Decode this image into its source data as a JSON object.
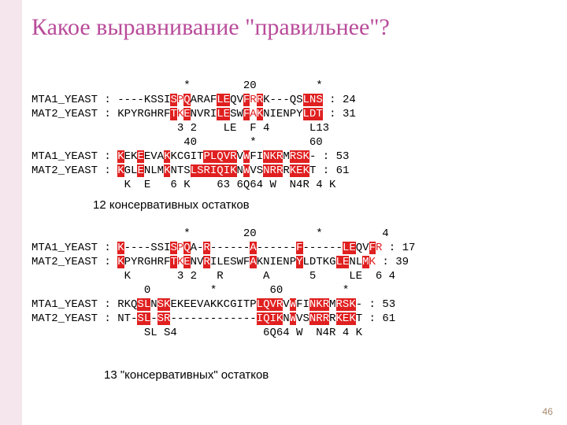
{
  "title": "Какое выравнивание \"правильнее\"?",
  "caption1": "12 консервативных остатков",
  "caption2": "13 \"консервативных\" остатков",
  "pageNumber": "46",
  "seqLabels": {
    "a": "MTA1_YEAST",
    "b": "MAT2_YEAST"
  },
  "block1_ruler1": "                       *        20         *       ",
  "block1_a_pre": " : ",
  "block1_a_seg": [
    [
      "----KSSI",
      0
    ],
    [
      "S",
      1
    ],
    [
      "P",
      2
    ],
    [
      "Q",
      1
    ],
    [
      "ARAF",
      0
    ],
    [
      "LE",
      1
    ],
    [
      "QV",
      0
    ],
    [
      "F",
      1
    ],
    [
      "R",
      2
    ],
    [
      "R",
      1
    ],
    [
      "K---QS",
      0
    ],
    [
      "LNS",
      1
    ],
    [
      " : 24",
      0
    ]
  ],
  "block1_b_seg": [
    [
      "KPYRGHRF",
      0
    ],
    [
      "T",
      1
    ],
    [
      "K",
      2
    ],
    [
      "E",
      1
    ],
    [
      "NVRI",
      0
    ],
    [
      "LE",
      1
    ],
    [
      "SW",
      0
    ],
    [
      "F",
      1
    ],
    [
      "A",
      2
    ],
    [
      "K",
      1
    ],
    [
      "NIENPY",
      0
    ],
    [
      "LDT",
      1
    ],
    [
      " : 31",
      0
    ]
  ],
  "block1_cons1": "                      3 2    LE  F 4      L13",
  "block1_ruler2": "                       40        *        60  ",
  "block1_a2_seg": [
    [
      "K",
      1
    ],
    [
      "EK",
      0
    ],
    [
      "E",
      1
    ],
    [
      "EVA",
      0
    ],
    [
      "K",
      1
    ],
    [
      "KCGIT",
      0
    ],
    [
      "P",
      1
    ],
    [
      "LQVR",
      1
    ],
    [
      "V",
      0
    ],
    [
      "W",
      1
    ],
    [
      "FI",
      0
    ],
    [
      "NKR",
      1
    ],
    [
      "M",
      0
    ],
    [
      "RSK",
      1
    ],
    [
      "-",
      0
    ],
    [
      " : 53",
      0
    ]
  ],
  "block1_b2_seg": [
    [
      "K",
      1
    ],
    [
      "GL",
      0
    ],
    [
      "E",
      1
    ],
    [
      "NLM",
      0
    ],
    [
      "K",
      1
    ],
    [
      "NTS",
      0
    ],
    [
      "LS",
      1
    ],
    [
      "R",
      1
    ],
    [
      "IQIK",
      1
    ],
    [
      "N",
      0
    ],
    [
      "W",
      1
    ],
    [
      "VS",
      0
    ],
    [
      "NRR",
      1
    ],
    [
      "R",
      0
    ],
    [
      "KEK",
      1
    ],
    [
      "T",
      0
    ],
    [
      " : 61",
      0
    ]
  ],
  "block1_cons2": "              K  E   6 K    63 6Q64 W  N4R 4 K",
  "block2_ruler1": "                       *        20         *         4",
  "block2_a_seg": [
    [
      "K",
      1
    ],
    [
      "----SSI",
      0
    ],
    [
      "S",
      1
    ],
    [
      "P",
      2
    ],
    [
      "Q",
      1
    ],
    [
      "A-",
      0
    ],
    [
      "R",
      1
    ],
    [
      "------",
      0
    ],
    [
      "A",
      1
    ],
    [
      "------",
      0
    ],
    [
      "F",
      1
    ],
    [
      "------",
      0
    ],
    [
      "LE",
      1
    ],
    [
      "QV",
      0
    ],
    [
      "F",
      1
    ],
    [
      "R",
      2
    ],
    [
      " : 17",
      0
    ]
  ],
  "block2_b_seg": [
    [
      "K",
      1
    ],
    [
      "PYRGHRF",
      0
    ],
    [
      "T",
      1
    ],
    [
      "K",
      2
    ],
    [
      "E",
      1
    ],
    [
      "NV",
      0
    ],
    [
      "R",
      1
    ],
    [
      "ILESWF",
      0
    ],
    [
      "A",
      1
    ],
    [
      "KNIENP",
      0
    ],
    [
      "Y",
      1
    ],
    [
      "LDTKG",
      0
    ],
    [
      "LE",
      1
    ],
    [
      "NL",
      0
    ],
    [
      "M",
      1
    ],
    [
      "K",
      2
    ],
    [
      " : 39",
      0
    ]
  ],
  "block2_cons1": "              K       3 2   R      A      5     LE  6 4",
  "block2_ruler2": "                 0         *        60         *      ",
  "block2_a2_seg": [
    [
      "RKQ",
      0
    ],
    [
      "SL",
      1
    ],
    [
      "N",
      0
    ],
    [
      "SK",
      1
    ],
    [
      "EKEEVAKKCGITP",
      0
    ],
    [
      "LQVR",
      1
    ],
    [
      "V",
      0
    ],
    [
      "W",
      1
    ],
    [
      "FI",
      0
    ],
    [
      "NKR",
      1
    ],
    [
      "M",
      0
    ],
    [
      "RSK",
      1
    ],
    [
      "-",
      0
    ],
    [
      " : 53",
      0
    ]
  ],
  "block2_b2_seg": [
    [
      "NT-",
      0
    ],
    [
      "SL",
      1
    ],
    [
      "-",
      0
    ],
    [
      "SR",
      1
    ],
    [
      "-------------",
      0
    ],
    [
      "IQIK",
      1
    ],
    [
      "N",
      0
    ],
    [
      "W",
      1
    ],
    [
      "VS",
      0
    ],
    [
      "NRR",
      1
    ],
    [
      "R",
      0
    ],
    [
      "KEK",
      1
    ],
    [
      "T",
      0
    ],
    [
      " : 61",
      0
    ]
  ],
  "block2_cons2": "                 SL S4             6Q64 W  N4R 4 K"
}
